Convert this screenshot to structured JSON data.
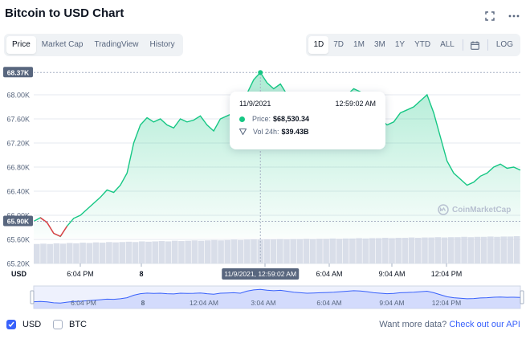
{
  "header": {
    "title": "Bitcoin to USD Chart"
  },
  "tabs": [
    {
      "label": "Price",
      "active": true
    },
    {
      "label": "Market Cap",
      "active": false
    },
    {
      "label": "TradingView",
      "active": false
    },
    {
      "label": "History",
      "active": false
    }
  ],
  "ranges": [
    {
      "label": "1D",
      "active": true
    },
    {
      "label": "7D",
      "active": false
    },
    {
      "label": "1M",
      "active": false
    },
    {
      "label": "3M",
      "active": false
    },
    {
      "label": "1Y",
      "active": false
    },
    {
      "label": "YTD",
      "active": false
    },
    {
      "label": "ALL",
      "active": false
    }
  ],
  "log_label": "LOG",
  "tooltip": {
    "date": "11/9/2021",
    "time": "12:59:02 AM",
    "price_label": "Price:",
    "price_value": "$68,530.34",
    "vol_label": "Vol 24h:",
    "vol_value": "$39.43B"
  },
  "watermark": "CoinMarketCap",
  "colors": {
    "up": "#16c784",
    "down": "#ea3943",
    "accent": "#3861fb",
    "grid": "#e6e9ef",
    "muted": "#58667e"
  },
  "chart_data": {
    "type": "area",
    "y_ticks": [
      "68.00K",
      "67.60K",
      "67.20K",
      "66.80K",
      "66.40K",
      "66.00K",
      "65.60K",
      "65.20K"
    ],
    "y_tick_values": [
      68000,
      67600,
      67200,
      66800,
      66400,
      66000,
      65600,
      65200
    ],
    "y_axis_unit": "USD",
    "ylim": [
      65200,
      68400
    ],
    "x_ticks": [
      "6:04 PM",
      "8",
      "3:04 AM",
      "6:04 AM",
      "9:04 AM",
      "12:04 PM"
    ],
    "x_hover_label": "11/9/2021, 12:59:02 AM",
    "high_label": "68.37K",
    "high_value": 68370,
    "open_label": "65.90K",
    "open_value": 65900,
    "nav_ticks": [
      "6:04 PM",
      "8",
      "12:04 AM",
      "3:04 AM",
      "6:04 AM",
      "9:04 AM",
      "12:04 PM"
    ],
    "series": [
      {
        "values": [
          65900,
          65960,
          65880,
          65700,
          65650,
          65820,
          65950,
          66000,
          66100,
          66200,
          66300,
          66420,
          66380,
          66500,
          66700,
          67200,
          67500,
          67620,
          67550,
          67600,
          67500,
          67450,
          67600,
          67550,
          67580,
          67650,
          67500,
          67400,
          67600,
          67650,
          67700,
          67600,
          68020,
          68250,
          68370,
          68200,
          68100,
          68180,
          68000,
          67800,
          67700,
          67600,
          67650,
          67700,
          67750,
          67800,
          67900,
          68000,
          68100,
          68050,
          67900,
          67700,
          67600,
          67500,
          67550,
          67700,
          67750,
          67800,
          67900,
          68000,
          67700,
          67300,
          66900,
          66700,
          66600,
          66500,
          66550,
          66650,
          66700,
          66800,
          66850,
          66780,
          66800,
          66750
        ]
      }
    ],
    "volume_values": [
      60,
      61,
      60,
      62,
      61,
      63,
      62,
      64,
      63,
      65,
      64,
      66,
      65,
      66,
      67,
      66,
      68,
      67,
      68,
      69,
      68,
      70,
      69,
      70,
      71,
      70,
      71,
      72,
      71,
      72,
      73,
      72,
      73,
      74,
      73,
      74,
      74,
      75,
      74,
      75,
      75,
      76,
      75,
      76,
      76,
      77,
      76,
      77,
      77,
      78,
      77,
      78,
      78,
      79,
      78,
      79,
      79,
      80,
      79,
      80,
      80,
      81,
      80,
      81,
      81,
      82,
      81,
      82,
      82,
      83,
      82,
      83,
      83,
      84
    ]
  },
  "footer": {
    "usd_label": "USD",
    "btc_label": "BTC",
    "more_text": "Want more data?",
    "api_link": "Check out our API"
  }
}
